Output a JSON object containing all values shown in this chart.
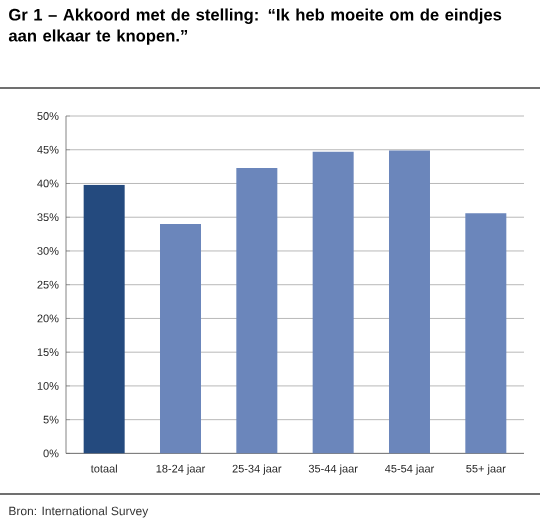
{
  "chart_data": {
    "type": "bar",
    "title": "Gr 1 – Akkoord met de stelling: “Ik heb moeite om de eindjes aan elkaar te knopen.”",
    "categories": [
      "totaal",
      "18-24 jaar",
      "25-34 jaar",
      "35-44 jaar",
      "45-54 jaar",
      "55+ jaar"
    ],
    "values": [
      39.8,
      34.0,
      42.3,
      44.7,
      44.9,
      35.6
    ],
    "colors": [
      "#244a7e",
      "#6b86bb",
      "#6b86bb",
      "#6b86bb",
      "#6b86bb",
      "#6b86bb"
    ],
    "ylim": [
      0,
      50
    ],
    "yticks": [
      {
        "value": 0,
        "label": "0%"
      },
      {
        "value": 5,
        "label": "5%"
      },
      {
        "value": 10,
        "label": "10%"
      },
      {
        "value": 15,
        "label": "15%"
      },
      {
        "value": 20,
        "label": "20%"
      },
      {
        "value": 25,
        "label": "25%"
      },
      {
        "value": 30,
        "label": "30%"
      },
      {
        "value": 35,
        "label": "35%"
      },
      {
        "value": 40,
        "label": "40%"
      },
      {
        "value": 45,
        "label": "45%"
      },
      {
        "value": 50,
        "label": "50%"
      }
    ],
    "grid": "y",
    "annotations": [
      "Bron: International Survey"
    ]
  }
}
